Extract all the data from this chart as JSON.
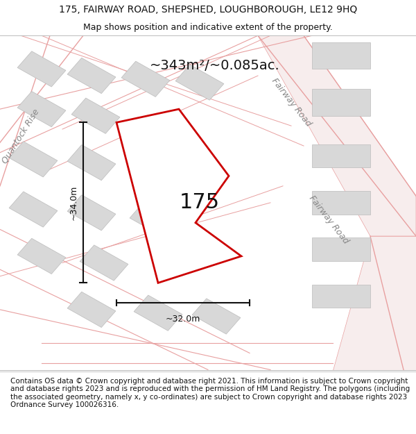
{
  "title": "175, FAIRWAY ROAD, SHEPSHED, LOUGHBOROUGH, LE12 9HQ",
  "subtitle": "Map shows position and indicative extent of the property.",
  "footer": "Contains OS data © Crown copyright and database right 2021. This information is subject to Crown copyright and database rights 2023 and is reproduced with the permission of HM Land Registry. The polygons (including the associated geometry, namely x, y co-ordinates) are subject to Crown copyright and database rights 2023 Ordnance Survey 100026316.",
  "area_label": "~343m²/~0.085ac.",
  "property_label": "175",
  "dim_height": "~34.0m",
  "dim_width": "~32.0m",
  "road_label_right1": "Fairway Road",
  "road_label_right2": "Fairway Road",
  "road_label_left": "Quantock Rise",
  "map_bg": "#f2f0ed",
  "road_color": "#e8a0a0",
  "road_fill": "#f7eded",
  "building_color": "#d8d8d8",
  "building_edge": "#bbbbbb",
  "property_fill": "white",
  "property_edge": "#cc0000",
  "dim_color": "#111111",
  "title_fontsize": 10,
  "subtitle_fontsize": 9,
  "footer_fontsize": 7.5,
  "label_fontsize": 14,
  "property_num_fontsize": 22,
  "road_fontsize": 9
}
